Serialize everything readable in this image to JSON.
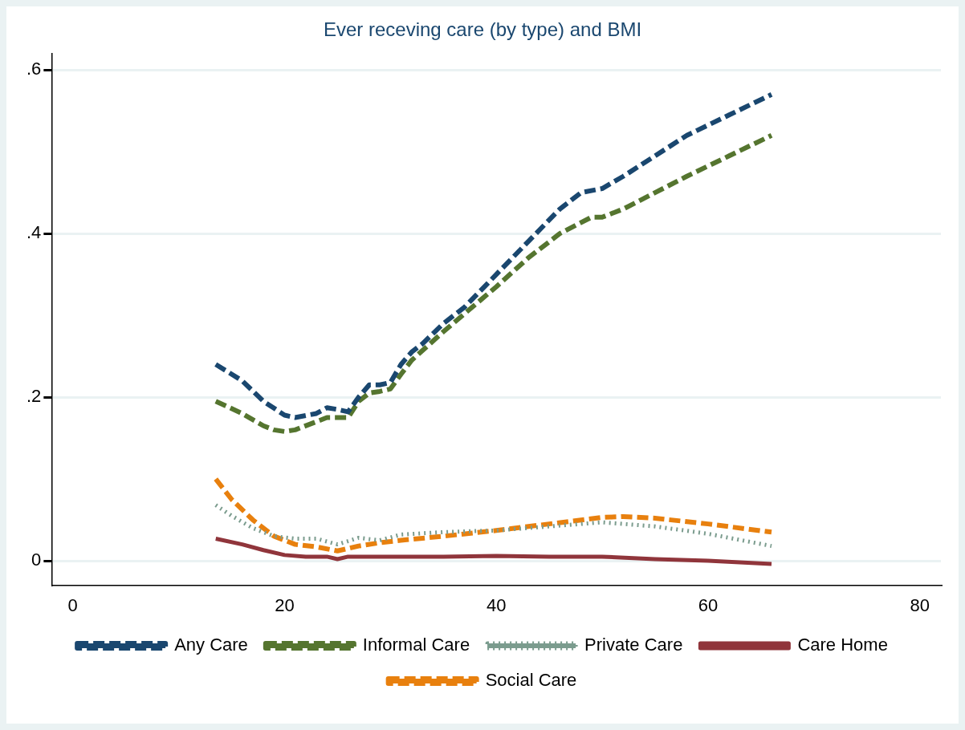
{
  "chart_data": {
    "type": "line",
    "title": "Ever receving care (by type) and BMI",
    "xlim": [
      -2,
      82
    ],
    "xticks": [
      0,
      20,
      40,
      60,
      80
    ],
    "ylim": [
      -0.03,
      0.62
    ],
    "yticks": [
      {
        "value": 0,
        "label": "0"
      },
      {
        "value": 0.2,
        "label": ".2"
      },
      {
        "value": 0.4,
        "label": ".4"
      },
      {
        "value": 0.6,
        "label": ".6"
      }
    ],
    "grid": "y",
    "legend": "bottom",
    "series": [
      {
        "name": "Any Care",
        "color": "#1a476f",
        "line_style": "dashed",
        "x": [
          13.5,
          16,
          18,
          20,
          21,
          23,
          24,
          25,
          26,
          27,
          28,
          29,
          30,
          31,
          32,
          33,
          35,
          37,
          40,
          43,
          46,
          48,
          50,
          52,
          55,
          58,
          62,
          66
        ],
        "values": [
          0.24,
          0.22,
          0.195,
          0.178,
          0.175,
          0.18,
          0.187,
          0.185,
          0.182,
          0.2,
          0.215,
          0.215,
          0.218,
          0.24,
          0.255,
          0.265,
          0.29,
          0.31,
          0.35,
          0.39,
          0.43,
          0.45,
          0.455,
          0.47,
          0.495,
          0.52,
          0.545,
          0.57
        ]
      },
      {
        "name": "Informal Care",
        "color": "#55752f",
        "line_style": "dashed",
        "x": [
          13.5,
          16,
          18,
          19,
          20,
          21,
          23,
          24,
          25,
          26,
          27,
          28,
          29,
          30,
          31,
          32,
          35,
          40,
          43,
          46,
          49,
          50,
          52,
          55,
          58,
          62,
          66
        ],
        "values": [
          0.195,
          0.18,
          0.165,
          0.16,
          0.158,
          0.16,
          0.17,
          0.175,
          0.175,
          0.175,
          0.195,
          0.205,
          0.207,
          0.21,
          0.228,
          0.245,
          0.28,
          0.335,
          0.37,
          0.4,
          0.42,
          0.42,
          0.43,
          0.45,
          0.47,
          0.495,
          0.52
        ]
      },
      {
        "name": "Private Care",
        "color": "#7b9c8e",
        "line_style": "dotted",
        "x": [
          13.5,
          15,
          17,
          19,
          21,
          23,
          25,
          27,
          29,
          31,
          35,
          40,
          45,
          50,
          55,
          60,
          66
        ],
        "values": [
          0.068,
          0.055,
          0.04,
          0.03,
          0.027,
          0.027,
          0.02,
          0.028,
          0.025,
          0.032,
          0.035,
          0.037,
          0.042,
          0.047,
          0.042,
          0.033,
          0.018
        ]
      },
      {
        "name": "Care Home",
        "color": "#90353b",
        "line_style": "solid",
        "x": [
          13.5,
          16,
          18,
          20,
          22,
          24,
          25,
          26,
          30,
          35,
          40,
          45,
          50,
          55,
          60,
          66
        ],
        "values": [
          0.027,
          0.02,
          0.013,
          0.007,
          0.005,
          0.005,
          0.002,
          0.005,
          0.005,
          0.005,
          0.006,
          0.005,
          0.005,
          0.002,
          0,
          -0.004
        ]
      },
      {
        "name": "Social Care",
        "color": "#e8800e",
        "line_style": "dashed",
        "x": [
          13.5,
          15,
          17,
          19,
          21,
          23,
          25,
          27,
          29,
          31,
          35,
          40,
          45,
          50,
          52,
          55,
          60,
          66
        ],
        "values": [
          0.1,
          0.075,
          0.05,
          0.03,
          0.02,
          0.017,
          0.012,
          0.018,
          0.022,
          0.025,
          0.03,
          0.037,
          0.045,
          0.053,
          0.054,
          0.052,
          0.045,
          0.035
        ]
      }
    ]
  }
}
